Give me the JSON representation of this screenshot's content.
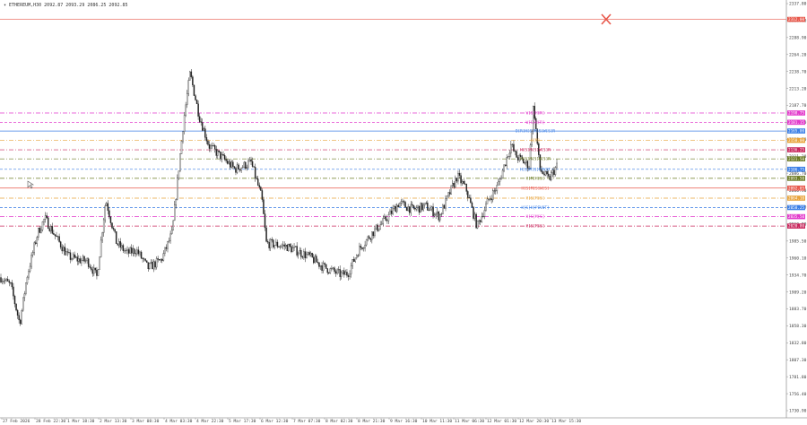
{
  "symbol_bar": {
    "symbol": "ETHEREUM,H30",
    "ohlc": "2092.87 2093.29 2086.25 2092.85"
  },
  "colors": {
    "background": "#ffffff",
    "grid": "#e8e8e8",
    "axis": "#9a9a9a",
    "candle": "#222222",
    "red": "#e8584b",
    "magenta": "#e23acb",
    "blue": "#3a7ee6",
    "orange": "#e8a33a",
    "olive": "#6b7a22",
    "crimson": "#c8245a"
  },
  "chart_data": {
    "type": "candlestick",
    "title": "",
    "xlabel": "",
    "ylabel": "",
    "ylim": [
      1715,
      2337
    ],
    "yticks": [
      "2337.80",
      "2320.10",
      "2288.90",
      "2264.20",
      "2238.70",
      "2213.20",
      "2187.70",
      "2162.20",
      "2136.70",
      "2111.20",
      "2086.70",
      "2060.50",
      "2035.30",
      "2010.90",
      "1985.50",
      "1960.10",
      "1934.70",
      "1909.20",
      "1883.70",
      "1858.30",
      "1832.80",
      "1807.30",
      "1781.80",
      "1756.40",
      "1730.90"
    ],
    "xticks": [
      "27 Feb 2026",
      "28 Feb 22:30",
      "1 Mar 18:30",
      "2 Mar 13:30",
      "3 Mar 08:30",
      "4 Mar 03:30",
      "4 Mar 22:30",
      "5 Mar 17:30",
      "6 Mar 12:30",
      "7 Mar 07:30",
      "8 Mar 02:30",
      "8 Mar 21:30",
      "9 Mar 16:30",
      "10 Mar 11:30",
      "11 Mar 06:30",
      "12 Mar 01:30",
      "12 Mar 20:30",
      "13 Mar 15:30"
    ],
    "price_path": [
      [
        0,
        1925
      ],
      [
        12,
        1912
      ],
      [
        22,
        1855
      ],
      [
        30,
        1925
      ],
      [
        42,
        1990
      ],
      [
        50,
        2012
      ],
      [
        62,
        1985
      ],
      [
        76,
        1955
      ],
      [
        88,
        1950
      ],
      [
        98,
        1948
      ],
      [
        108,
        1925
      ],
      [
        118,
        2040
      ],
      [
        130,
        1975
      ],
      [
        142,
        1960
      ],
      [
        152,
        1965
      ],
      [
        165,
        1938
      ],
      [
        180,
        1950
      ],
      [
        192,
        1990
      ],
      [
        205,
        2160
      ],
      [
        212,
        2228
      ],
      [
        222,
        2165
      ],
      [
        233,
        2120
      ],
      [
        248,
        2102
      ],
      [
        262,
        2085
      ],
      [
        280,
        2095
      ],
      [
        292,
        2042
      ],
      [
        297,
        1975
      ],
      [
        320,
        1970
      ],
      [
        345,
        1955
      ],
      [
        360,
        1940
      ],
      [
        380,
        1928
      ],
      [
        388,
        1930
      ],
      [
        400,
        1965
      ],
      [
        415,
        1990
      ],
      [
        430,
        2010
      ],
      [
        445,
        2035
      ],
      [
        460,
        2025
      ],
      [
        475,
        2030
      ],
      [
        490,
        2015
      ],
      [
        510,
        2075
      ],
      [
        520,
        2055
      ],
      [
        532,
        2000
      ],
      [
        545,
        2040
      ],
      [
        555,
        2060
      ],
      [
        570,
        2122
      ],
      [
        575,
        2105
      ],
      [
        590,
        2090
      ],
      [
        595,
        2182
      ],
      [
        602,
        2085
      ],
      [
        612,
        2070
      ],
      [
        622,
        2092
      ]
    ],
    "levels": [
      {
        "price": 2308.2,
        "label": "",
        "axis_label": "2312.00",
        "color": "red",
        "dash": "solid"
      },
      {
        "price": 2168.8,
        "label": "W[S]H[R]",
        "axis_label": "2198.75",
        "color": "magenta",
        "dash": "dashdot"
      },
      {
        "price": 2155.0,
        "label": "W[S]H[R]",
        "axis_label": "2181.15",
        "color": "magenta",
        "dash": "dash"
      },
      {
        "price": 2142.0,
        "label": "D[R]H[S]M[S]W[S]R",
        "axis_label": "2165.00",
        "color": "blue",
        "dash": "solid"
      },
      {
        "price": 2128.0,
        "label": "H[M]",
        "axis_label": "2150.00",
        "color": "orange",
        "dash": "dashdot"
      },
      {
        "price": 2114.0,
        "label": "H[S]M[S]W[S]R",
        "axis_label": "2136.25",
        "color": "crimson",
        "dash": "dashdot"
      },
      {
        "price": 2100.5,
        "label": "H[S]M[S]W[S]R",
        "axis_label": "2121.50",
        "color": "olive",
        "dash": "dashdot"
      },
      {
        "price": 2085.0,
        "label": "H[S]M[S]PIVOT",
        "axis_label": "2106.75",
        "color": "blue",
        "dash": "dash"
      },
      {
        "price": 2071.5,
        "label": "H[M]H[S]",
        "axis_label": "2093.50",
        "color": "olive",
        "dash": "dashdot"
      },
      {
        "price": 2057.0,
        "label": "H[S]M[S]W[S]",
        "axis_label": "2092.85",
        "color": "red",
        "dash": "solid"
      },
      {
        "price": 2042.0,
        "label": "H[S]M[S]",
        "axis_label": "2064.10",
        "color": "orange",
        "dash": "dashdot"
      },
      {
        "price": 2028.0,
        "label": "H[S]H[PIVOT]",
        "axis_label": "2050.25",
        "color": "blue",
        "dash": "dash"
      },
      {
        "price": 2014.5,
        "label": "H[S]M[S]",
        "axis_label": "2035.50",
        "color": "magenta",
        "dash": "dashdot"
      },
      {
        "price": 2000.5,
        "label": "H[S]M[S]",
        "axis_label": "2020.80",
        "color": "crimson",
        "dash": "dashdot"
      }
    ]
  }
}
